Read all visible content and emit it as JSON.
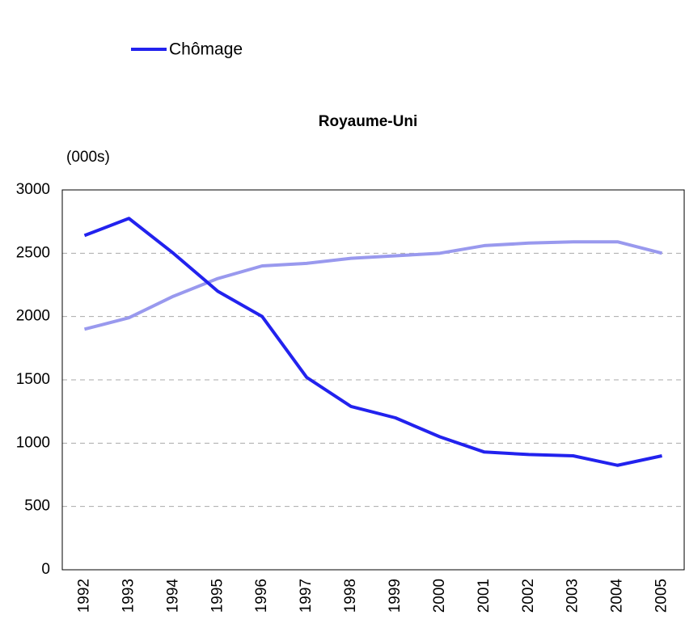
{
  "chart_data": {
    "type": "line",
    "title": "Royaume-Uni",
    "y_label": "(000s)",
    "categories": [
      "1992",
      "1993",
      "1994",
      "1995",
      "1996",
      "1997",
      "1998",
      "1999",
      "2000",
      "2001",
      "2002",
      "2003",
      "2004",
      "2005"
    ],
    "series": [
      {
        "name": "Chômage",
        "color": "#2222ee",
        "values": [
          2640,
          2775,
          2500,
          2200,
          2000,
          1520,
          1290,
          1200,
          1050,
          930,
          910,
          900,
          825,
          900
        ]
      },
      {
        "color": "#9999ee",
        "values": [
          1900,
          1990,
          2160,
          2300,
          2400,
          2420,
          2460,
          2480,
          2500,
          2560,
          2580,
          2590,
          2590,
          2500
        ]
      }
    ],
    "ylim": [
      0,
      3000
    ],
    "yticks": [
      0,
      500,
      1000,
      1500,
      2000,
      2500,
      3000
    ],
    "grid": true
  }
}
